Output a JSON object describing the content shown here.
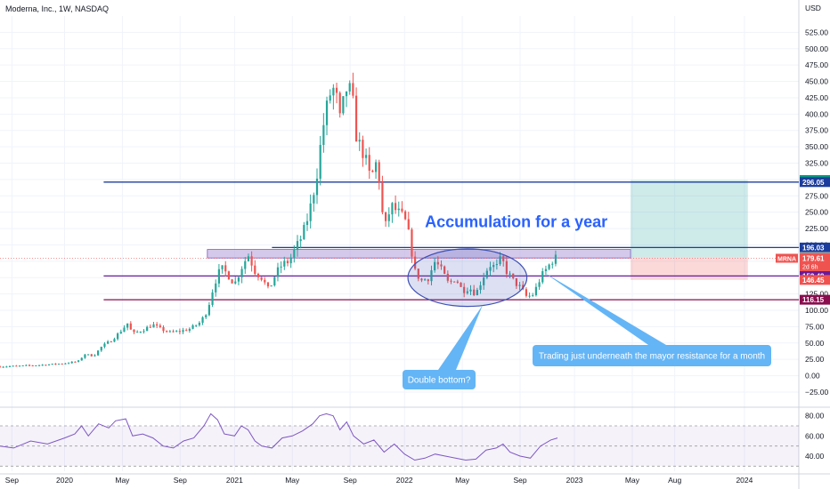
{
  "chart_data": {
    "type": "candlestick",
    "title": "Moderna, Inc., 1W, NASDAQ",
    "currency_label": "USD",
    "ylim": [
      -40,
      550
    ],
    "y_ticks": [
      -25,
      0,
      25,
      50,
      75,
      100,
      125,
      150,
      175,
      200,
      225,
      250,
      275,
      300,
      325,
      350,
      375,
      400,
      425,
      450,
      475,
      500,
      525
    ],
    "y_tick_labels": [
      "−25.00",
      "0.00",
      "25.00",
      "50.00",
      "75.00",
      "100.00",
      "125.00",
      "150.00",
      "175.00",
      "200.00",
      "225.00",
      "250.00",
      "275.00",
      "300.00",
      "325.00",
      "350.00",
      "375.00",
      "400.00",
      "425.00",
      "450.00",
      "475.00",
      "500.00",
      "525.00"
    ],
    "x_range": [
      2019.62,
      2024.32
    ],
    "x_ticks": [
      {
        "t": 2019.69,
        "label": "Sep"
      },
      {
        "t": 2020.0,
        "label": "2020"
      },
      {
        "t": 2020.34,
        "label": "May"
      },
      {
        "t": 2020.68,
        "label": "Sep"
      },
      {
        "t": 2021.0,
        "label": "2021"
      },
      {
        "t": 2021.34,
        "label": "May"
      },
      {
        "t": 2021.68,
        "label": "Sep"
      },
      {
        "t": 2022.0,
        "label": "2022"
      },
      {
        "t": 2022.34,
        "label": "May"
      },
      {
        "t": 2022.68,
        "label": "Sep"
      },
      {
        "t": 2023.0,
        "label": "2023"
      },
      {
        "t": 2023.34,
        "label": "May"
      },
      {
        "t": 2023.59,
        "label": "Aug"
      },
      {
        "t": 2024.0,
        "label": "2024"
      }
    ],
    "price_path": [
      {
        "t": 2019.62,
        "v": 14
      },
      {
        "t": 2019.75,
        "v": 15
      },
      {
        "t": 2019.9,
        "v": 17
      },
      {
        "t": 2020.0,
        "v": 19
      },
      {
        "t": 2020.08,
        "v": 22
      },
      {
        "t": 2020.12,
        "v": 33
      },
      {
        "t": 2020.17,
        "v": 30
      },
      {
        "t": 2020.22,
        "v": 45
      },
      {
        "t": 2020.28,
        "v": 55
      },
      {
        "t": 2020.33,
        "v": 68
      },
      {
        "t": 2020.37,
        "v": 80
      },
      {
        "t": 2020.4,
        "v": 64
      },
      {
        "t": 2020.46,
        "v": 70
      },
      {
        "t": 2020.52,
        "v": 78
      },
      {
        "t": 2020.56,
        "v": 72
      },
      {
        "t": 2020.62,
        "v": 66
      },
      {
        "t": 2020.68,
        "v": 68
      },
      {
        "t": 2020.74,
        "v": 72
      },
      {
        "t": 2020.8,
        "v": 82
      },
      {
        "t": 2020.84,
        "v": 100
      },
      {
        "t": 2020.88,
        "v": 140
      },
      {
        "t": 2020.92,
        "v": 165
      },
      {
        "t": 2020.96,
        "v": 155
      },
      {
        "t": 2021.0,
        "v": 140
      },
      {
        "t": 2021.04,
        "v": 165
      },
      {
        "t": 2021.08,
        "v": 185
      },
      {
        "t": 2021.12,
        "v": 160
      },
      {
        "t": 2021.16,
        "v": 150
      },
      {
        "t": 2021.2,
        "v": 130
      },
      {
        "t": 2021.24,
        "v": 155
      },
      {
        "t": 2021.28,
        "v": 170
      },
      {
        "t": 2021.32,
        "v": 175
      },
      {
        "t": 2021.36,
        "v": 195
      },
      {
        "t": 2021.4,
        "v": 215
      },
      {
        "t": 2021.44,
        "v": 250
      },
      {
        "t": 2021.48,
        "v": 300
      },
      {
        "t": 2021.52,
        "v": 380
      },
      {
        "t": 2021.56,
        "v": 430
      },
      {
        "t": 2021.59,
        "v": 440
      },
      {
        "t": 2021.62,
        "v": 390
      },
      {
        "t": 2021.66,
        "v": 440
      },
      {
        "t": 2021.69,
        "v": 430
      },
      {
        "t": 2021.72,
        "v": 360
      },
      {
        "t": 2021.76,
        "v": 340
      },
      {
        "t": 2021.8,
        "v": 300
      },
      {
        "t": 2021.84,
        "v": 330
      },
      {
        "t": 2021.88,
        "v": 220
      },
      {
        "t": 2021.92,
        "v": 260
      },
      {
        "t": 2021.96,
        "v": 250
      },
      {
        "t": 2022.0,
        "v": 240
      },
      {
        "t": 2022.03,
        "v": 210
      },
      {
        "t": 2022.06,
        "v": 160
      },
      {
        "t": 2022.1,
        "v": 145
      },
      {
        "t": 2022.14,
        "v": 150
      },
      {
        "t": 2022.18,
        "v": 175
      },
      {
        "t": 2022.22,
        "v": 160
      },
      {
        "t": 2022.26,
        "v": 140
      },
      {
        "t": 2022.3,
        "v": 150
      },
      {
        "t": 2022.34,
        "v": 130
      },
      {
        "t": 2022.38,
        "v": 135
      },
      {
        "t": 2022.42,
        "v": 125
      },
      {
        "t": 2022.46,
        "v": 150
      },
      {
        "t": 2022.5,
        "v": 170
      },
      {
        "t": 2022.54,
        "v": 165
      },
      {
        "t": 2022.57,
        "v": 180
      },
      {
        "t": 2022.6,
        "v": 160
      },
      {
        "t": 2022.64,
        "v": 145
      },
      {
        "t": 2022.68,
        "v": 135
      },
      {
        "t": 2022.72,
        "v": 120
      },
      {
        "t": 2022.76,
        "v": 125
      },
      {
        "t": 2022.8,
        "v": 150
      },
      {
        "t": 2022.84,
        "v": 165
      },
      {
        "t": 2022.88,
        "v": 180
      },
      {
        "t": 2022.9,
        "v": 179.61
      }
    ],
    "last_price": 179.61,
    "horizontal_levels": [
      {
        "value": 296.05,
        "label": "296.05",
        "color": "#1c3d9c",
        "x_start": 2020.23
      },
      {
        "value": 196.03,
        "label": "196.03",
        "color": "#1c3d9c",
        "x_start": 2021.22
      },
      {
        "value": 152.49,
        "label": "152.49",
        "color": "#6a1b9a",
        "x_start": 2020.23
      },
      {
        "value": 116.15,
        "label": "116.15",
        "color": "#880e4f",
        "x_start": 2020.23
      }
    ],
    "resistance_zone": {
      "x_start": 2020.84,
      "x_end": 2023.33,
      "y_low": 180,
      "y_high": 193
    },
    "position": {
      "x_start": 2023.33,
      "x_end": 2024.02,
      "entry": 181.65,
      "target": 299.25,
      "stop": 146.45,
      "labels": {
        "target": "299.25",
        "entry": "181.65",
        "stop": "146.45"
      }
    },
    "ticker_badge": {
      "symbol": "MRNA",
      "price": "179.61",
      "countdown": "2d 6h",
      "color": "#ef5350"
    },
    "ellipse": {
      "t_center": 2022.37,
      "v_center": 150,
      "t_radius": 0.35,
      "v_radius": 44
    },
    "annotations": [
      {
        "text": "Accumulation for a year",
        "type": "big"
      },
      {
        "text": "Trading just underneath the mayor resistance for a month",
        "type": "callout"
      },
      {
        "text": "Double bottom?",
        "type": "callout"
      }
    ],
    "rsi": {
      "ylim": [
        25,
        85
      ],
      "y_ticks": [
        40,
        60,
        80
      ],
      "y_tick_labels": [
        "40.00",
        "60.00",
        "80.00"
      ],
      "upper_band": 70,
      "lower_band": 30,
      "mid": 50,
      "series": [
        {
          "t": 2019.62,
          "v": 50
        },
        {
          "t": 2019.7,
          "v": 48
        },
        {
          "t": 2019.8,
          "v": 55
        },
        {
          "t": 2019.9,
          "v": 52
        },
        {
          "t": 2020.0,
          "v": 58
        },
        {
          "t": 2020.06,
          "v": 62
        },
        {
          "t": 2020.1,
          "v": 70
        },
        {
          "t": 2020.14,
          "v": 60
        },
        {
          "t": 2020.2,
          "v": 72
        },
        {
          "t": 2020.26,
          "v": 68
        },
        {
          "t": 2020.3,
          "v": 75
        },
        {
          "t": 2020.36,
          "v": 77
        },
        {
          "t": 2020.4,
          "v": 60
        },
        {
          "t": 2020.46,
          "v": 62
        },
        {
          "t": 2020.52,
          "v": 58
        },
        {
          "t": 2020.58,
          "v": 50
        },
        {
          "t": 2020.64,
          "v": 48
        },
        {
          "t": 2020.7,
          "v": 55
        },
        {
          "t": 2020.76,
          "v": 58
        },
        {
          "t": 2020.82,
          "v": 70
        },
        {
          "t": 2020.86,
          "v": 82
        },
        {
          "t": 2020.9,
          "v": 76
        },
        {
          "t": 2020.94,
          "v": 62
        },
        {
          "t": 2021.0,
          "v": 60
        },
        {
          "t": 2021.04,
          "v": 70
        },
        {
          "t": 2021.08,
          "v": 66
        },
        {
          "t": 2021.12,
          "v": 55
        },
        {
          "t": 2021.16,
          "v": 50
        },
        {
          "t": 2021.22,
          "v": 48
        },
        {
          "t": 2021.28,
          "v": 58
        },
        {
          "t": 2021.34,
          "v": 60
        },
        {
          "t": 2021.4,
          "v": 65
        },
        {
          "t": 2021.46,
          "v": 72
        },
        {
          "t": 2021.5,
          "v": 80
        },
        {
          "t": 2021.54,
          "v": 82
        },
        {
          "t": 2021.58,
          "v": 80
        },
        {
          "t": 2021.62,
          "v": 66
        },
        {
          "t": 2021.66,
          "v": 74
        },
        {
          "t": 2021.7,
          "v": 60
        },
        {
          "t": 2021.76,
          "v": 52
        },
        {
          "t": 2021.82,
          "v": 56
        },
        {
          "t": 2021.88,
          "v": 44
        },
        {
          "t": 2021.94,
          "v": 52
        },
        {
          "t": 2022.0,
          "v": 42
        },
        {
          "t": 2022.06,
          "v": 36
        },
        {
          "t": 2022.12,
          "v": 38
        },
        {
          "t": 2022.18,
          "v": 42
        },
        {
          "t": 2022.24,
          "v": 40
        },
        {
          "t": 2022.3,
          "v": 38
        },
        {
          "t": 2022.36,
          "v": 36
        },
        {
          "t": 2022.42,
          "v": 37
        },
        {
          "t": 2022.48,
          "v": 46
        },
        {
          "t": 2022.54,
          "v": 48
        },
        {
          "t": 2022.58,
          "v": 52
        },
        {
          "t": 2022.62,
          "v": 44
        },
        {
          "t": 2022.68,
          "v": 40
        },
        {
          "t": 2022.74,
          "v": 38
        },
        {
          "t": 2022.8,
          "v": 50
        },
        {
          "t": 2022.86,
          "v": 56
        },
        {
          "t": 2022.9,
          "v": 58
        }
      ]
    }
  }
}
